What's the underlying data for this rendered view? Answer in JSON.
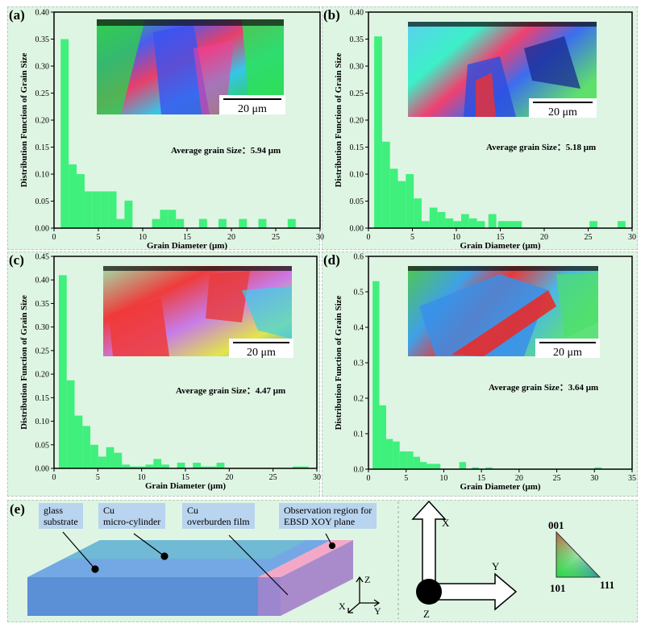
{
  "chart_data": [
    {
      "type": "bar",
      "panel": "(a)",
      "xlabel": "Grain Diameter (μm)",
      "ylabel": "Distribution Function of Grain Size",
      "xlim": [
        0,
        30
      ],
      "ylim": [
        0,
        0.4
      ],
      "xticks": [
        0,
        5,
        10,
        15,
        20,
        25,
        30
      ],
      "yticks": [
        "0.00",
        "0.05",
        "0.10",
        "0.15",
        "0.20",
        "0.25",
        "0.30",
        "0.35",
        "0.40"
      ],
      "bin_width": 0.9,
      "x": [
        1.2,
        2.1,
        3.0,
        3.9,
        4.8,
        5.7,
        6.6,
        7.5,
        8.4,
        11.5,
        12.4,
        13.3,
        14.2,
        16.8,
        19.0,
        21.3,
        23.5,
        26.8
      ],
      "values": [
        0.35,
        0.118,
        0.1,
        0.068,
        0.068,
        0.068,
        0.068,
        0.017,
        0.051,
        0.017,
        0.034,
        0.034,
        0.017,
        0.017,
        0.017,
        0.017,
        0.017,
        0.017
      ],
      "annotation": "Average grain Size：5.94 μm",
      "scale_bar": "20 μm"
    },
    {
      "type": "bar",
      "panel": "(b)",
      "xlabel": "Grain Diameter (μm)",
      "ylabel": "Distribution Function of Grain Size",
      "xlim": [
        0,
        30
      ],
      "ylim": [
        0,
        0.4
      ],
      "xticks": [
        0,
        5,
        10,
        15,
        20,
        25,
        30
      ],
      "yticks": [
        "0.00",
        "0.05",
        "0.10",
        "0.15",
        "0.20",
        "0.25",
        "0.30",
        "0.35",
        "0.40"
      ],
      "bin_width": 0.9,
      "x": [
        1.1,
        2.0,
        2.9,
        3.8,
        4.7,
        5.6,
        6.5,
        7.4,
        8.3,
        9.2,
        10.1,
        11.0,
        11.9,
        12.8,
        14.1,
        15.2,
        16.1,
        17.0,
        25.6,
        28.8
      ],
      "values": [
        0.355,
        0.16,
        0.11,
        0.087,
        0.1,
        0.055,
        0.013,
        0.038,
        0.03,
        0.018,
        0.013,
        0.026,
        0.018,
        0.013,
        0.026,
        0.013,
        0.013,
        0.013,
        0.013,
        0.013
      ],
      "annotation": "Average grain Size：5.18 μm",
      "scale_bar": "20 μm"
    },
    {
      "type": "bar",
      "panel": "(c)",
      "xlabel": "Grain Diameter (μm)",
      "ylabel": "Distribution Function of Grain Size",
      "xlim": [
        0,
        30
      ],
      "ylim": [
        0,
        0.45
      ],
      "xticks": [
        0,
        5,
        10,
        15,
        20,
        25,
        30
      ],
      "yticks": [
        "0.00",
        "0.05",
        "0.10",
        "0.15",
        "0.20",
        "0.25",
        "0.30",
        "0.35",
        "0.40",
        "0.45"
      ],
      "bin_width": 0.9,
      "x": [
        1.0,
        1.9,
        2.8,
        3.7,
        4.6,
        5.5,
        6.4,
        7.3,
        8.2,
        9.1,
        10.0,
        10.9,
        11.8,
        12.7,
        14.5,
        16.3,
        17.2,
        18.1,
        19.0,
        27.7,
        28.6
      ],
      "values": [
        0.41,
        0.187,
        0.112,
        0.09,
        0.05,
        0.025,
        0.045,
        0.033,
        0.008,
        0.004,
        0.004,
        0.008,
        0.02,
        0.008,
        0.012,
        0.012,
        0.004,
        0.004,
        0.012,
        0.004,
        0.004
      ],
      "annotation": "Average grain Size：4.47 μm",
      "scale_bar": "20 μm"
    },
    {
      "type": "bar",
      "panel": "(d)",
      "xlabel": "Grain Diameter (μm)",
      "ylabel": "Distribution Function of Grain Size",
      "xlim": [
        0,
        35
      ],
      "ylim": [
        0,
        0.6
      ],
      "xticks": [
        0,
        5,
        10,
        15,
        20,
        25,
        30,
        35
      ],
      "yticks": [
        "0.0",
        "0.1",
        "0.2",
        "0.3",
        "0.4",
        "0.5",
        "0.6"
      ],
      "bin_width": 0.9,
      "x": [
        1.0,
        1.9,
        2.8,
        3.7,
        4.6,
        5.5,
        6.4,
        7.3,
        8.2,
        9.1,
        12.5,
        14.2,
        16.0,
        30.5
      ],
      "values": [
        0.53,
        0.18,
        0.085,
        0.078,
        0.05,
        0.05,
        0.035,
        0.02,
        0.015,
        0.015,
        0.02,
        0.005,
        0.005,
        0.005
      ],
      "annotation": "Average grain Size：3.64 μm",
      "scale_bar": "20 μm"
    }
  ],
  "panel_e": {
    "label": "(e)",
    "callouts": [
      {
        "id": "glass",
        "text": "glass\nsubstrate"
      },
      {
        "id": "cyl",
        "text": "Cu\nmicro-cylinder"
      },
      {
        "id": "film",
        "text": "Cu\noverburden film"
      },
      {
        "id": "obs",
        "text": "Observation region for\nEBSD XOY plane"
      }
    ],
    "small_axes": {
      "z": "Z",
      "x": "X",
      "y": "Y"
    },
    "big_axes": {
      "x": "X",
      "y": "Y",
      "z": "Z"
    },
    "ipf": {
      "top": "001",
      "left": "101",
      "right": "111"
    }
  },
  "colors": {
    "bar": "#3ff07c",
    "panel_bg": "#dff5e3",
    "callout_bg": "#b9d4ee",
    "block_front": "#5b8fd6",
    "block_top": "#74a8e4",
    "block_side": "#a98bcc",
    "observation": "#f3a8c8"
  }
}
